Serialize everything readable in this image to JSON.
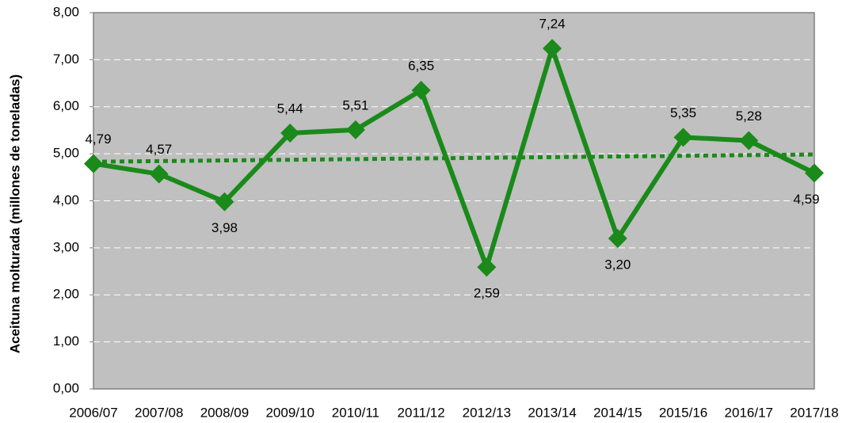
{
  "chart_data": {
    "type": "line",
    "y_label": "Aceituna molturada (millones de toneladas)",
    "categories": [
      "2006/07",
      "2007/08",
      "2008/09",
      "2009/10",
      "2010/11",
      "2011/12",
      "2012/13",
      "2013/14",
      "2014/15",
      "2015/16",
      "2016/17",
      "2017/18"
    ],
    "series": [
      {
        "name": "Aceituna molturada",
        "color": "#1a8a1a",
        "values": [
          4.79,
          4.57,
          3.98,
          5.44,
          5.51,
          6.35,
          2.59,
          7.24,
          3.2,
          5.35,
          5.28,
          4.59
        ],
        "value_labels": [
          "4,79",
          "4,57",
          "3,98",
          "5,44",
          "5,51",
          "6,35",
          "2,59",
          "7,24",
          "3,20",
          "5,35",
          "5,28",
          "4,59"
        ]
      }
    ],
    "ylim": [
      0,
      8
    ],
    "yticks": [
      {
        "value": 0,
        "label": "0,00"
      },
      {
        "value": 1,
        "label": "1,00"
      },
      {
        "value": 2,
        "label": "2,00"
      },
      {
        "value": 3,
        "label": "3,00"
      },
      {
        "value": 4,
        "label": "4,00"
      },
      {
        "value": 5,
        "label": "5,00"
      },
      {
        "value": 6,
        "label": "6,00"
      },
      {
        "value": 7,
        "label": "7,00"
      },
      {
        "value": 8,
        "label": "8,00"
      }
    ],
    "grid": true,
    "trendline": true,
    "plot_background": "#c0c0c0"
  }
}
